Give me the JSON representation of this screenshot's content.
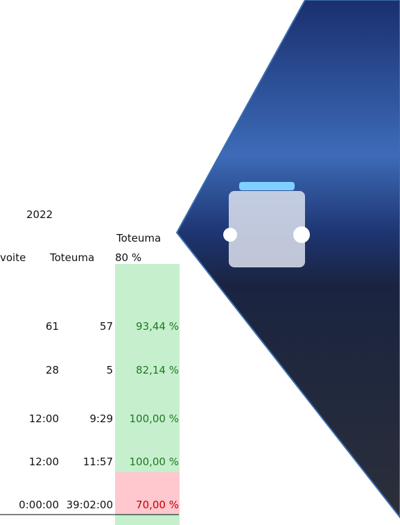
{
  "table": {
    "year": "2022",
    "headers": [
      "voite",
      "Toteuma",
      "Toteuma",
      "80 %"
    ],
    "rows": [
      [
        "61",
        "57",
        "93,44 %"
      ],
      [
        "28",
        "5",
        "82,14 %"
      ],
      [
        "12:00",
        "9:29",
        "100,00 %"
      ],
      [
        "12:00",
        "11:57",
        "100,00 %"
      ],
      [
        "0:00:00",
        "39:02:00",
        "70,00 %"
      ]
    ]
  }
}
